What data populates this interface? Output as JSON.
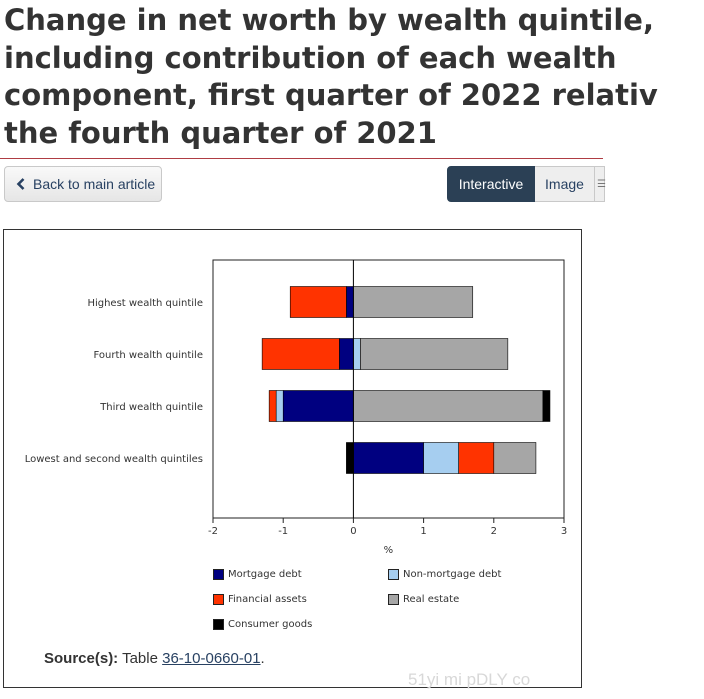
{
  "page": {
    "title_lines": [
      "Change in net worth by wealth quintile,",
      "including contribution of each wealth",
      "component, first quarter of 2022 relativ",
      "the fourth quarter of 2021"
    ],
    "back_label": "Back to main article",
    "tabs": [
      "Interactive",
      "Image"
    ],
    "source_label": "Source(s):",
    "source_prefix": "Table",
    "source_link": "36-10-0660-01",
    "source_suffix": ".",
    "watermark": "51yi mi pDLY co"
  },
  "colors": {
    "Mortgage debt": "#000080",
    "Non-mortgage debt": "#a6cef0",
    "Financial assets": "#ff3300",
    "Real estate": "#a6a6a6",
    "Consumer goods": "#000000"
  },
  "chart_data": {
    "type": "bar",
    "orientation": "horizontal",
    "stacked": true,
    "categories": [
      "Highest wealth quintile",
      "Fourth wealth quintile",
      "Third wealth quintile",
      "Lowest and second wealth quintiles"
    ],
    "series": [
      {
        "name": "Mortgage debt",
        "values": [
          -0.1,
          -0.2,
          -1.0,
          1.0
        ]
      },
      {
        "name": "Non-mortgage debt",
        "values": [
          0.0,
          0.1,
          -0.1,
          0.5
        ]
      },
      {
        "name": "Financial assets",
        "values": [
          -0.8,
          -1.1,
          -0.1,
          0.5
        ]
      },
      {
        "name": "Real estate",
        "values": [
          1.7,
          2.1,
          2.7,
          0.6
        ]
      },
      {
        "name": "Consumer goods",
        "values": [
          0.0,
          0.0,
          0.1,
          -0.1
        ]
      }
    ],
    "xlabel": "%",
    "xlim": [
      -2,
      3
    ],
    "xticks": [
      "-2",
      "-1",
      "0",
      "1",
      "2",
      "3"
    ],
    "legend_position": "bottom",
    "grid": false
  }
}
